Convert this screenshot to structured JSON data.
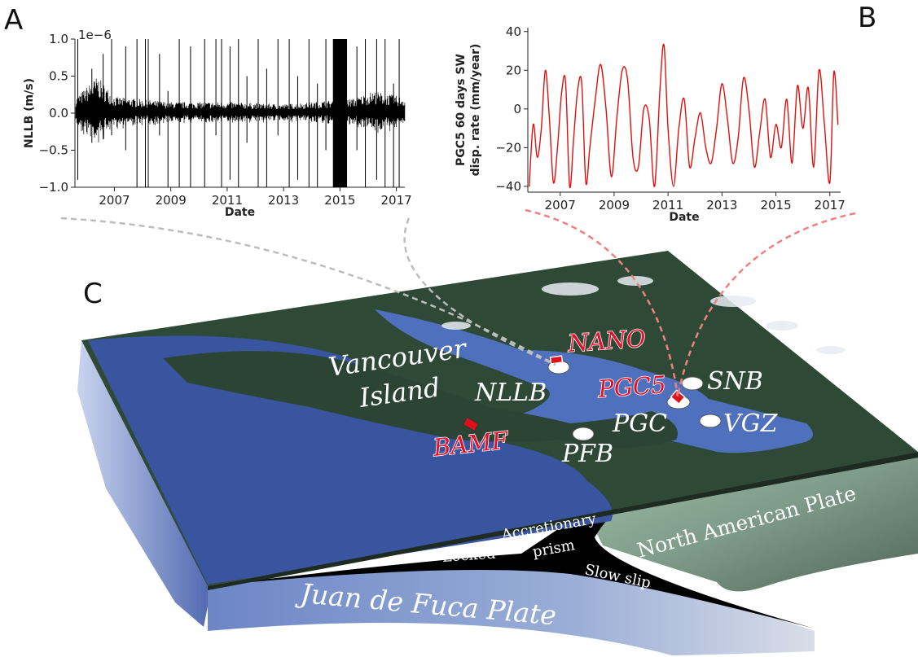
{
  "panels": {
    "a": "A",
    "b": "B",
    "c": "C"
  },
  "chart_data": [
    {
      "type": "line",
      "panel": "A",
      "xlabel": "Date",
      "ylabel": "NLLB (m/s)",
      "y_scale_label": "1e−6",
      "xlim": [
        2005.6,
        2017.3
      ],
      "ylim": [
        -1.0,
        1.0
      ],
      "x_ticks": [
        2007,
        2009,
        2011,
        2013,
        2015,
        2017
      ],
      "x_tick_labels": [
        "2007",
        "2009",
        "2011",
        "2013",
        "2015",
        "2017"
      ],
      "y_ticks": [
        -1.0,
        -0.5,
        0.0,
        0.5,
        1.0
      ],
      "y_tick_labels": [
        "−1.0",
        "−0.5",
        "0.0",
        "0.5",
        "1.0"
      ],
      "color": "#000000",
      "noise_envelope": {
        "x": [
          2005.6,
          2006.4,
          2007.0,
          2009.0,
          2011.0,
          2013.0,
          2014.0,
          2015.5,
          2016.2,
          2017.2
        ],
        "half_width": [
          0.2,
          0.5,
          0.22,
          0.15,
          0.15,
          0.12,
          0.15,
          0.2,
          0.3,
          0.22
        ]
      },
      "spikes": [
        {
          "x": 2005.7,
          "low": -0.9,
          "high": 1.0
        },
        {
          "x": 2006.2,
          "low": -0.4,
          "high": 0.6
        },
        {
          "x": 2006.6,
          "low": -0.3,
          "high": 0.8
        },
        {
          "x": 2006.9,
          "low": -0.3,
          "high": 1.0
        },
        {
          "x": 2007.4,
          "low": -0.5,
          "high": 0.9
        },
        {
          "x": 2007.8,
          "low": -1.0,
          "high": 1.0
        },
        {
          "x": 2008.1,
          "low": -1.0,
          "high": 1.0
        },
        {
          "x": 2008.2,
          "low": -1.0,
          "high": 1.0
        },
        {
          "x": 2008.6,
          "low": -0.3,
          "high": 0.8
        },
        {
          "x": 2008.9,
          "low": -1.0,
          "high": 0.3
        },
        {
          "x": 2009.3,
          "low": -1.0,
          "high": 1.0
        },
        {
          "x": 2009.7,
          "low": -1.0,
          "high": 0.9
        },
        {
          "x": 2010.2,
          "low": -1.0,
          "high": 1.0
        },
        {
          "x": 2010.6,
          "low": -0.3,
          "high": 1.0
        },
        {
          "x": 2010.8,
          "low": -1.0,
          "high": 1.0
        },
        {
          "x": 2011.1,
          "low": -0.9,
          "high": 0.9
        },
        {
          "x": 2011.4,
          "low": -1.0,
          "high": 1.0
        },
        {
          "x": 2011.7,
          "low": -0.4,
          "high": 0.5
        },
        {
          "x": 2012.1,
          "low": -1.0,
          "high": 1.0
        },
        {
          "x": 2012.4,
          "low": -1.0,
          "high": 0.6
        },
        {
          "x": 2012.8,
          "low": -0.3,
          "high": 1.0
        },
        {
          "x": 2013.2,
          "low": -1.0,
          "high": 1.0
        },
        {
          "x": 2013.5,
          "low": -0.9,
          "high": 0.5
        },
        {
          "x": 2013.9,
          "low": -1.0,
          "high": 1.0
        },
        {
          "x": 2014.2,
          "low": -1.0,
          "high": 0.4
        },
        {
          "x": 2014.5,
          "low": -0.5,
          "high": 1.0
        },
        {
          "x": 2014.8,
          "low": -1.0,
          "high": 1.0
        },
        {
          "x": 2015.0,
          "low": -1.0,
          "high": 1.0
        },
        {
          "x": 2015.1,
          "low": -1.0,
          "high": 1.0
        },
        {
          "x": 2015.2,
          "low": -1.0,
          "high": 1.0
        },
        {
          "x": 2015.6,
          "low": -0.5,
          "high": 0.9
        },
        {
          "x": 2015.9,
          "low": -1.0,
          "high": 1.0
        },
        {
          "x": 2016.3,
          "low": -0.9,
          "high": 1.0
        },
        {
          "x": 2016.6,
          "low": -1.0,
          "high": 1.0
        },
        {
          "x": 2016.9,
          "low": -1.0,
          "high": 0.4
        },
        {
          "x": 2017.1,
          "low": -1.0,
          "high": 1.0
        }
      ],
      "dense_band": {
        "x_start": 2014.75,
        "x_end": 2015.25,
        "low": -1.0,
        "high": 1.0
      }
    },
    {
      "type": "line",
      "panel": "B",
      "xlabel": "Date",
      "ylabel": "PGC5 60 days SW\ndisp. rate (mm/year)",
      "ylabel_lines": [
        "PGC5 60 days SW",
        "disp. rate (mm/year)"
      ],
      "xlim": [
        2005.8,
        2017.4
      ],
      "ylim": [
        -43,
        42
      ],
      "x_ticks": [
        2007,
        2009,
        2011,
        2013,
        2015,
        2017
      ],
      "x_tick_labels": [
        "2007",
        "2009",
        "2011",
        "2013",
        "2015",
        "2017"
      ],
      "y_ticks": [
        -40,
        -20,
        0,
        20,
        40
      ],
      "y_tick_labels": [
        "−40",
        "−20",
        "0",
        "20",
        "40"
      ],
      "color": "#e01010",
      "x": [
        2005.85,
        2006.0,
        2006.15,
        2006.3,
        2006.45,
        2006.6,
        2006.75,
        2006.9,
        2007.05,
        2007.2,
        2007.35,
        2007.5,
        2007.65,
        2007.8,
        2007.95,
        2008.1,
        2008.3,
        2008.5,
        2008.7,
        2008.9,
        2009.1,
        2009.3,
        2009.5,
        2009.7,
        2009.9,
        2010.1,
        2010.3,
        2010.5,
        2010.7,
        2010.85,
        2011.0,
        2011.2,
        2011.4,
        2011.6,
        2011.8,
        2012.0,
        2012.2,
        2012.4,
        2012.6,
        2012.8,
        2013.0,
        2013.2,
        2013.4,
        2013.6,
        2013.8,
        2014.0,
        2014.2,
        2014.4,
        2014.6,
        2014.8,
        2015.0,
        2015.2,
        2015.4,
        2015.6,
        2015.8,
        2016.0,
        2016.2,
        2016.4,
        2016.6,
        2016.8,
        2017.0,
        2017.15,
        2017.3
      ],
      "y": [
        -40,
        -8,
        -25,
        -10,
        20,
        -5,
        -38,
        -20,
        8,
        14,
        -40,
        -15,
        10,
        13,
        -38,
        -20,
        5,
        23,
        0,
        -35,
        -5,
        20,
        15,
        -25,
        -30,
        0,
        -5,
        -40,
        10,
        33,
        -10,
        -40,
        -10,
        5,
        -30,
        -15,
        -2,
        -20,
        -28,
        -10,
        13,
        -5,
        -28,
        -15,
        16,
        0,
        -30,
        -12,
        5,
        -25,
        -8,
        -20,
        5,
        -28,
        12,
        -10,
        11,
        -30,
        20,
        -8,
        -38,
        19,
        -8
      ]
    }
  ],
  "map": {
    "labels": {
      "vancouver_line1": "Vancouver",
      "vancouver_line2": "Island",
      "nllb": "NLLB",
      "nano": "NANO",
      "pgc5": "PGC5",
      "snb": "SNB",
      "pgc": "PGC",
      "vgz": "VGZ",
      "bamf": "BAMF",
      "pfb": "PFB"
    },
    "block_labels": {
      "accretionary_line1": "Accretionary",
      "accretionary_line2": "prism",
      "locked": "Locked",
      "slow_slip": "Slow slip",
      "north_american": "North American Plate",
      "juan_de_fuca": "Juan de Fuca Plate"
    },
    "colors": {
      "land": "#2e4a36",
      "water": "#4460a8",
      "ocean_deep": "#2f4a8e",
      "marker_red": "#e0101a",
      "station_white": "#ffffff",
      "callout_gray": "#bdbdbd",
      "callout_red": "#f08080",
      "wedge": "#000000"
    }
  }
}
